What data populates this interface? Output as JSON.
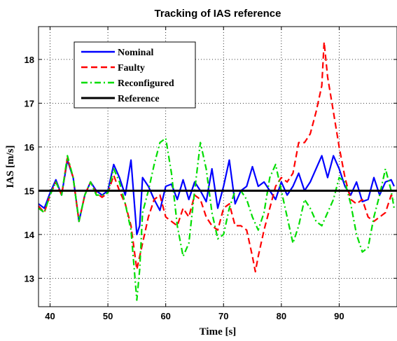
{
  "chart_data": {
    "type": "line",
    "title": "Tracking of IAS reference",
    "xlabel": "Time [s]",
    "ylabel": "IAS [m/s]",
    "xlim": [
      38,
      100
    ],
    "ylim": [
      12.35,
      18.75
    ],
    "xticks": [
      40,
      50,
      60,
      70,
      80,
      90
    ],
    "yticks": [
      13,
      14,
      15,
      16,
      17,
      18
    ],
    "grid": true,
    "grid_style": "dotted",
    "legend_position": "top-left",
    "series": [
      {
        "name": "Nominal",
        "color": "#0000ff",
        "dash": "solid",
        "points": [
          [
            38,
            14.7
          ],
          [
            39,
            14.6
          ],
          [
            40,
            14.95
          ],
          [
            41,
            15.25
          ],
          [
            42,
            14.9
          ],
          [
            43,
            15.7
          ],
          [
            44,
            15.3
          ],
          [
            45,
            14.3
          ],
          [
            46,
            14.9
          ],
          [
            47,
            15.2
          ],
          [
            48,
            15.0
          ],
          [
            49,
            14.9
          ],
          [
            50,
            15.0
          ],
          [
            51,
            15.6
          ],
          [
            52,
            15.3
          ],
          [
            53,
            14.9
          ],
          [
            54,
            15.7
          ],
          [
            55,
            14.0
          ],
          [
            55.5,
            14.2
          ],
          [
            56,
            15.3
          ],
          [
            57,
            15.1
          ],
          [
            58,
            14.8
          ],
          [
            59,
            14.55
          ],
          [
            60,
            15.1
          ],
          [
            61,
            15.15
          ],
          [
            62,
            14.8
          ],
          [
            63,
            15.25
          ],
          [
            64,
            14.8
          ],
          [
            65,
            15.2
          ],
          [
            66,
            15.0
          ],
          [
            67,
            14.75
          ],
          [
            68,
            15.5
          ],
          [
            69,
            14.6
          ],
          [
            70,
            15.1
          ],
          [
            71,
            15.7
          ],
          [
            72,
            14.7
          ],
          [
            73,
            15.0
          ],
          [
            74,
            15.1
          ],
          [
            75,
            15.55
          ],
          [
            76,
            15.1
          ],
          [
            77,
            15.2
          ],
          [
            78,
            15.0
          ],
          [
            79,
            14.8
          ],
          [
            80,
            15.2
          ],
          [
            81,
            14.9
          ],
          [
            82,
            15.1
          ],
          [
            83,
            15.4
          ],
          [
            84,
            15.0
          ],
          [
            85,
            15.2
          ],
          [
            86,
            15.5
          ],
          [
            87,
            15.8
          ],
          [
            88,
            15.3
          ],
          [
            89,
            15.8
          ],
          [
            90,
            15.5
          ],
          [
            91,
            15.1
          ],
          [
            92,
            14.9
          ],
          [
            93,
            15.2
          ],
          [
            94,
            14.75
          ],
          [
            95,
            14.8
          ],
          [
            96,
            15.3
          ],
          [
            97,
            14.9
          ],
          [
            98,
            15.2
          ],
          [
            99,
            15.25
          ],
          [
            99.5,
            15.1
          ]
        ]
      },
      {
        "name": "Faulty",
        "color": "#ff0000",
        "dash": "dashed",
        "points": [
          [
            38,
            14.65
          ],
          [
            39,
            14.5
          ],
          [
            40,
            14.9
          ],
          [
            41,
            15.2
          ],
          [
            42,
            14.9
          ],
          [
            43,
            15.75
          ],
          [
            44,
            15.3
          ],
          [
            45,
            14.3
          ],
          [
            46,
            14.9
          ],
          [
            47,
            15.2
          ],
          [
            48,
            14.95
          ],
          [
            49,
            14.85
          ],
          [
            50,
            14.95
          ],
          [
            51,
            15.35
          ],
          [
            52,
            15.0
          ],
          [
            53,
            14.7
          ],
          [
            54,
            14.2
          ],
          [
            55,
            13.2
          ],
          [
            56,
            13.8
          ],
          [
            57,
            14.4
          ],
          [
            58,
            14.8
          ],
          [
            59,
            14.9
          ],
          [
            60,
            14.4
          ],
          [
            61,
            14.3
          ],
          [
            62,
            14.2
          ],
          [
            63,
            14.6
          ],
          [
            64,
            14.4
          ],
          [
            65,
            14.9
          ],
          [
            66,
            14.8
          ],
          [
            67,
            14.4
          ],
          [
            68,
            14.2
          ],
          [
            69,
            14.1
          ],
          [
            70,
            14.6
          ],
          [
            71,
            14.7
          ],
          [
            72,
            14.2
          ],
          [
            73,
            14.2
          ],
          [
            74,
            14.1
          ],
          [
            75,
            13.5
          ],
          [
            75.5,
            13.15
          ],
          [
            76,
            13.5
          ],
          [
            77,
            14.1
          ],
          [
            78,
            14.6
          ],
          [
            79,
            15.1
          ],
          [
            80,
            15.3
          ],
          [
            81,
            15.2
          ],
          [
            82,
            15.4
          ],
          [
            83,
            16.1
          ],
          [
            84,
            16.1
          ],
          [
            85,
            16.3
          ],
          [
            86,
            16.8
          ],
          [
            87,
            17.4
          ],
          [
            87.4,
            18.4
          ],
          [
            88,
            17.6
          ],
          [
            89,
            16.8
          ],
          [
            90,
            16.0
          ],
          [
            91,
            15.3
          ],
          [
            92,
            14.8
          ],
          [
            93,
            14.7
          ],
          [
            94,
            14.8
          ],
          [
            95,
            14.4
          ],
          [
            96,
            14.3
          ],
          [
            97,
            14.4
          ],
          [
            98,
            14.5
          ],
          [
            99,
            14.9
          ],
          [
            99.5,
            14.8
          ]
        ]
      },
      {
        "name": "Reconfigured",
        "color": "#00dd00",
        "dash": "dashdot",
        "points": [
          [
            38,
            14.6
          ],
          [
            39,
            14.5
          ],
          [
            40,
            14.9
          ],
          [
            41,
            15.2
          ],
          [
            42,
            14.9
          ],
          [
            43,
            15.8
          ],
          [
            44,
            15.3
          ],
          [
            45,
            14.3
          ],
          [
            46,
            14.9
          ],
          [
            47,
            15.2
          ],
          [
            48,
            14.9
          ],
          [
            49,
            14.9
          ],
          [
            50,
            14.95
          ],
          [
            51,
            15.5
          ],
          [
            52,
            15.2
          ],
          [
            53,
            14.7
          ],
          [
            54,
            14.1
          ],
          [
            55,
            12.5
          ],
          [
            55.5,
            13.2
          ],
          [
            56,
            14.5
          ],
          [
            57,
            15.0
          ],
          [
            58,
            15.6
          ],
          [
            59,
            16.1
          ],
          [
            60,
            16.2
          ],
          [
            61,
            15.4
          ],
          [
            62,
            14.2
          ],
          [
            63,
            13.5
          ],
          [
            64,
            13.8
          ],
          [
            65,
            15.0
          ],
          [
            66,
            16.1
          ],
          [
            67,
            15.5
          ],
          [
            68,
            14.5
          ],
          [
            69,
            13.9
          ],
          [
            70,
            14.0
          ],
          [
            71,
            14.6
          ],
          [
            72,
            15.0
          ],
          [
            73,
            15.0
          ],
          [
            74,
            14.8
          ],
          [
            75,
            14.4
          ],
          [
            76,
            14.1
          ],
          [
            77,
            14.5
          ],
          [
            78,
            15.3
          ],
          [
            79,
            15.6
          ],
          [
            80,
            15.0
          ],
          [
            81,
            14.4
          ],
          [
            82,
            13.8
          ],
          [
            83,
            14.2
          ],
          [
            84,
            14.8
          ],
          [
            85,
            14.6
          ],
          [
            86,
            14.3
          ],
          [
            87,
            14.2
          ],
          [
            88,
            14.5
          ],
          [
            89,
            14.8
          ],
          [
            90,
            15.3
          ],
          [
            91,
            15.2
          ],
          [
            92,
            14.7
          ],
          [
            93,
            14.0
          ],
          [
            94,
            13.6
          ],
          [
            95,
            13.7
          ],
          [
            96,
            14.4
          ],
          [
            97,
            14.9
          ],
          [
            98,
            15.5
          ],
          [
            99,
            15.0
          ],
          [
            99.5,
            14.6
          ]
        ]
      },
      {
        "name": "Reference",
        "color": "#000000",
        "dash": "solid",
        "points": [
          [
            38,
            15.0
          ],
          [
            100,
            15.0
          ]
        ]
      }
    ]
  }
}
